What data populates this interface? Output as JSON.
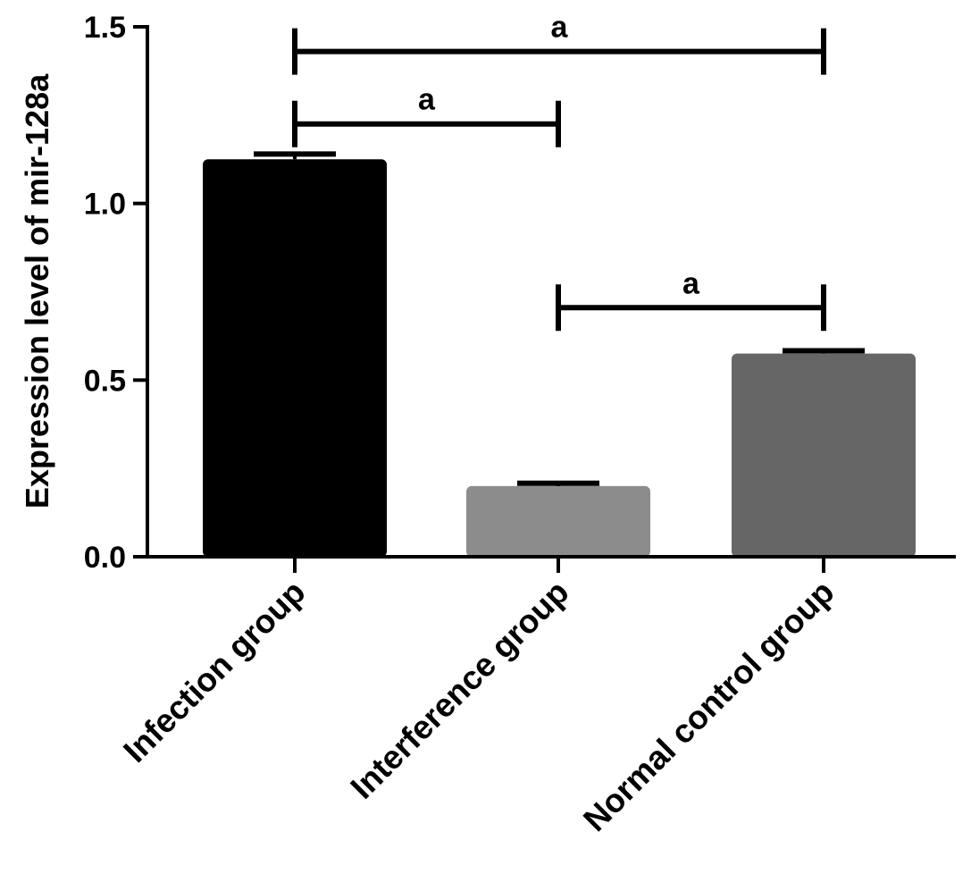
{
  "chart_data": {
    "type": "bar",
    "title": "",
    "xlabel": "",
    "ylabel": "Expression level of mir-128a",
    "ylim": [
      0,
      1.5
    ],
    "yticks": [
      "0.0",
      "0.5",
      "1.0",
      "1.5"
    ],
    "yticks_values": [
      0,
      0.5,
      1.0,
      1.5
    ],
    "categories": [
      "Infection group",
      "Interference group",
      "Normal control group"
    ],
    "values": [
      1.125,
      0.2,
      0.575
    ],
    "errors": [
      0.015,
      0.008,
      0.008
    ],
    "colors": [
      "#000000",
      "#8c8c8c",
      "#666666"
    ],
    "significance": [
      {
        "from": 0,
        "to": 1,
        "label": "a",
        "y": 1.225
      },
      {
        "from": 0,
        "to": 2,
        "label": "a",
        "y": 1.43
      },
      {
        "from": 1,
        "to": 2,
        "label": "a",
        "y": 0.705
      }
    ],
    "grid": false,
    "legend": "none"
  }
}
